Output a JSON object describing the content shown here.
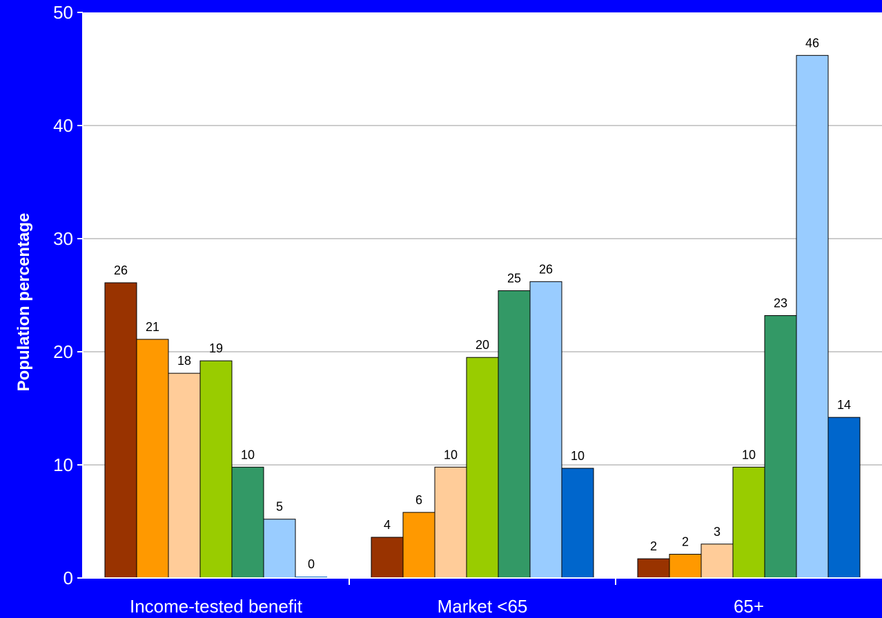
{
  "chart_data": {
    "type": "bar",
    "title": "",
    "xlabel": "",
    "ylabel": "Population percentage",
    "ylim": [
      0,
      50
    ],
    "yticks": [
      0,
      10,
      20,
      30,
      40,
      50
    ],
    "grid": true,
    "categories": [
      "Income-tested benefit",
      "Market <65",
      "65+"
    ],
    "series": [
      {
        "color": "#993300",
        "values": [
          26.1,
          3.6,
          1.7
        ],
        "labels": [
          "26",
          "4",
          "2"
        ]
      },
      {
        "color": "#ff9900",
        "values": [
          21.1,
          5.8,
          2.1
        ],
        "labels": [
          "21",
          "6",
          "2"
        ]
      },
      {
        "color": "#ffcc99",
        "values": [
          18.1,
          9.8,
          3.0
        ],
        "labels": [
          "18",
          "10",
          "3"
        ]
      },
      {
        "color": "#99cc00",
        "values": [
          19.2,
          19.5,
          9.8
        ],
        "labels": [
          "19",
          "20",
          "10"
        ]
      },
      {
        "color": "#339966",
        "values": [
          9.8,
          25.4,
          23.2
        ],
        "labels": [
          "10",
          "25",
          "23"
        ]
      },
      {
        "color": "#99ccff",
        "values": [
          5.2,
          26.2,
          46.2
        ],
        "labels": [
          "5",
          "26",
          "46"
        ]
      },
      {
        "color": "#0066cc",
        "values": [
          0.1,
          9.7,
          14.2
        ],
        "labels": [
          "0",
          "10",
          "14"
        ]
      }
    ]
  }
}
